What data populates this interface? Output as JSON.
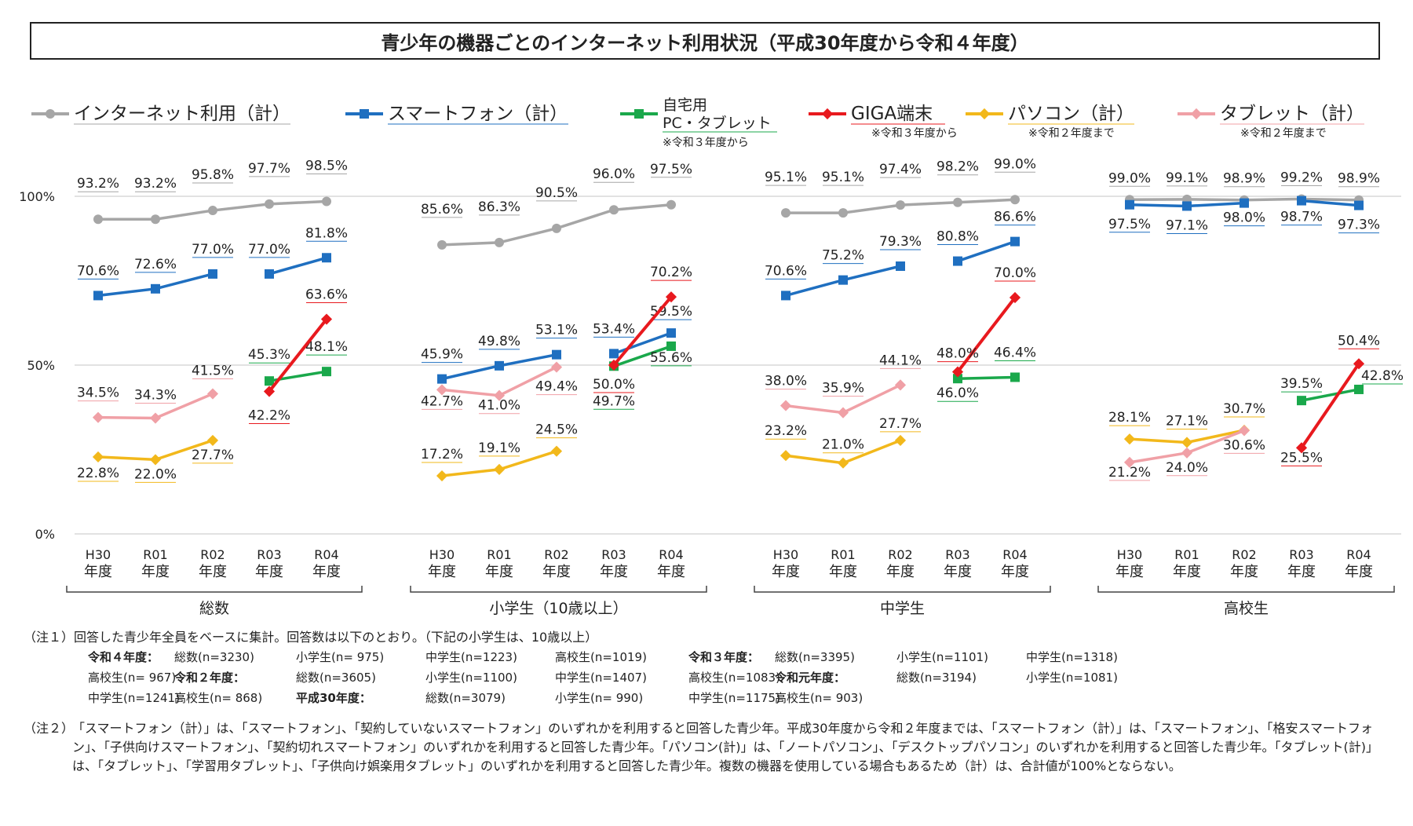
{
  "title": "青少年の機器ごとのインターネット利用状況（平成30年度から令和４年度）",
  "legend": [
    {
      "key": "internet",
      "label": "インターネット利用（計）",
      "note": ""
    },
    {
      "key": "smartphone",
      "label": "スマートフォン（計）",
      "note": ""
    },
    {
      "key": "home_pc",
      "label": "自宅用",
      "label2": "PC・タブレット",
      "note": "※令和３年度から"
    },
    {
      "key": "giga",
      "label": "GIGA端末",
      "note": "※令和３年度から"
    },
    {
      "key": "pc",
      "label": "パソコン（計）",
      "note": "※令和２年度まで"
    },
    {
      "key": "tablet",
      "label": "タブレット（計）",
      "note": "※令和２年度まで"
    }
  ],
  "y_ticks": [
    "100%",
    "50%",
    "0%"
  ],
  "x_ticks": [
    [
      "H30",
      "年度"
    ],
    [
      "R01",
      "年度"
    ],
    [
      "R02",
      "年度"
    ],
    [
      "R03",
      "年度"
    ],
    [
      "R04",
      "年度"
    ]
  ],
  "colors": {
    "internet": "#a6a6a6",
    "smartphone": "#1f6fc0",
    "home_pc": "#1aa84b",
    "giga": "#e8191e",
    "pc": "#f2b81b",
    "tablet": "#f0a0a6"
  },
  "chart_data": {
    "type": "line",
    "ylim": [
      0,
      100
    ],
    "categories": [
      "H30年度",
      "R01年度",
      "R02年度",
      "R03年度",
      "R04年度"
    ],
    "groups": [
      {
        "name": "総数",
        "series": [
          {
            "key": "internet",
            "values": [
              93.2,
              93.2,
              95.8,
              97.7,
              98.5
            ],
            "labels": [
              "93.2%",
              "93.2%",
              "95.8%",
              "97.7%",
              "98.5%"
            ]
          },
          {
            "key": "smartphone",
            "values": [
              70.6,
              72.6,
              77.0,
              77.0,
              81.8
            ],
            "labels": [
              "70.6%",
              "72.6%",
              "77.0%",
              "77.0%",
              "81.8%"
            ]
          },
          {
            "key": "home_pc",
            "values": [
              null,
              null,
              null,
              45.3,
              48.1
            ],
            "labels": [
              "",
              "",
              "",
              "45.3%",
              "48.1%"
            ]
          },
          {
            "key": "giga",
            "values": [
              null,
              null,
              null,
              42.2,
              63.6
            ],
            "labels": [
              "",
              "",
              "",
              "42.2%",
              "63.6%"
            ]
          },
          {
            "key": "pc",
            "values": [
              22.8,
              22.0,
              27.7,
              null,
              null
            ],
            "labels": [
              "22.8%",
              "22.0%",
              "27.7%",
              "",
              ""
            ]
          },
          {
            "key": "tablet",
            "values": [
              34.5,
              34.3,
              41.5,
              null,
              null
            ],
            "labels": [
              "34.5%",
              "34.3%",
              "41.5%",
              "",
              ""
            ]
          }
        ]
      },
      {
        "name": "小学生（10歳以上）",
        "series": [
          {
            "key": "internet",
            "values": [
              85.6,
              86.3,
              90.5,
              96.0,
              97.5
            ],
            "labels": [
              "85.6%",
              "86.3%",
              "90.5%",
              "96.0%",
              "97.5%"
            ]
          },
          {
            "key": "smartphone",
            "values": [
              45.9,
              49.8,
              53.1,
              53.4,
              59.5
            ],
            "labels": [
              "45.9%",
              "49.8%",
              "53.1%",
              "53.4%",
              "59.5%"
            ]
          },
          {
            "key": "home_pc",
            "values": [
              null,
              null,
              null,
              49.7,
              55.6
            ],
            "labels": [
              "",
              "",
              "",
              "49.7%",
              "55.6%"
            ]
          },
          {
            "key": "giga",
            "values": [
              null,
              null,
              null,
              50.0,
              70.2
            ],
            "labels": [
              "",
              "",
              "",
              "50.0%",
              "70.2%"
            ]
          },
          {
            "key": "pc",
            "values": [
              17.2,
              19.1,
              24.5,
              null,
              null
            ],
            "labels": [
              "17.2%",
              "19.1%",
              "24.5%",
              "",
              ""
            ]
          },
          {
            "key": "tablet",
            "values": [
              42.7,
              41.0,
              49.4,
              null,
              null
            ],
            "labels": [
              "42.7%",
              "41.0%",
              "49.4%",
              "",
              ""
            ]
          }
        ]
      },
      {
        "name": "中学生",
        "series": [
          {
            "key": "internet",
            "values": [
              95.1,
              95.1,
              97.4,
              98.2,
              99.0
            ],
            "labels": [
              "95.1%",
              "95.1%",
              "97.4%",
              "98.2%",
              "99.0%"
            ]
          },
          {
            "key": "smartphone",
            "values": [
              70.6,
              75.2,
              79.3,
              80.8,
              86.6
            ],
            "labels": [
              "70.6%",
              "75.2%",
              "79.3%",
              "80.8%",
              "86.6%"
            ]
          },
          {
            "key": "home_pc",
            "values": [
              null,
              null,
              null,
              46.0,
              46.4
            ],
            "labels": [
              "",
              "",
              "",
              "46.0%",
              "46.4%"
            ]
          },
          {
            "key": "giga",
            "values": [
              null,
              null,
              null,
              48.0,
              70.0
            ],
            "labels": [
              "",
              "",
              "",
              "48.0%",
              "70.0%"
            ]
          },
          {
            "key": "pc",
            "values": [
              23.2,
              21.0,
              27.7,
              null,
              null
            ],
            "labels": [
              "23.2%",
              "21.0%",
              "27.7%",
              "",
              ""
            ]
          },
          {
            "key": "tablet",
            "values": [
              38.0,
              35.9,
              44.1,
              null,
              null
            ],
            "labels": [
              "38.0%",
              "35.9%",
              "44.1%",
              "",
              ""
            ]
          }
        ]
      },
      {
        "name": "高校生",
        "series": [
          {
            "key": "internet",
            "values": [
              99.0,
              99.1,
              98.9,
              99.2,
              98.9
            ],
            "labels": [
              "99.0%",
              "99.1%",
              "98.9%",
              "99.2%",
              "98.9%"
            ]
          },
          {
            "key": "smartphone",
            "values": [
              97.5,
              97.1,
              98.0,
              98.7,
              97.3
            ],
            "labels": [
              "97.5%",
              "97.1%",
              "98.0%",
              "98.7%",
              "97.3%"
            ]
          },
          {
            "key": "home_pc",
            "values": [
              null,
              null,
              null,
              39.5,
              42.8
            ],
            "labels": [
              "",
              "",
              "",
              "39.5%",
              "42.8%"
            ]
          },
          {
            "key": "giga",
            "values": [
              null,
              null,
              null,
              25.5,
              50.4
            ],
            "labels": [
              "",
              "",
              "",
              "25.5%",
              "50.4%"
            ]
          },
          {
            "key": "pc",
            "values": [
              28.1,
              27.1,
              30.7,
              null,
              null
            ],
            "labels": [
              "28.1%",
              "27.1%",
              "30.7%",
              "",
              ""
            ]
          },
          {
            "key": "tablet",
            "values": [
              21.2,
              24.0,
              30.6,
              null,
              null
            ],
            "labels": [
              "21.2%",
              "24.0%",
              "30.6%",
              "",
              ""
            ]
          }
        ]
      }
    ]
  },
  "notes": {
    "note1": "（注１）回答した青少年全員をベースに集計。回答数は以下のとおり。（下記の小学生は、10歳以上）",
    "counts": [
      [
        "令和４年度：",
        "総数(n=3230)",
        "小学生(n= 975)",
        "中学生(n=1223)",
        "高校生(n=1019)",
        "令和３年度：",
        "総数(n=3395)",
        "小学生(n=1101)",
        "中学生(n=1318)",
        "高校生(n= 967)"
      ],
      [
        "令和２年度：",
        "総数(n=3605)",
        "小学生(n=1100)",
        "中学生(n=1407)",
        "高校生(n=1083)",
        "令和元年度：",
        "総数(n=3194)",
        "小学生(n=1081)",
        "中学生(n=1241)",
        "高校生(n= 868)"
      ],
      [
        "平成30年度：",
        "総数(n=3079)",
        "小学生(n= 990)",
        "中学生(n=1175)",
        "高校生(n= 903)",
        "",
        "",
        "",
        "",
        ""
      ]
    ],
    "note2_label": "（注２）",
    "note2": "「スマートフォン（計）」は、「スマートフォン」、「契約していないスマートフォン」のいずれかを利用すると回答した青少年。平成30年度から令和２年度までは、「スマートフォン（計）」は、「スマートフォン」、「格安スマートフォン」、「子供向けスマートフォン」、「契約切れスマートフォン」のいずれかを利用すると回答した青少年。「パソコン(計)」は、「ノートパソコン」、「デスクトップパソコン」のいずれかを利用すると回答した青少年。「タブレット(計)」は、「タブレット」、「学習用タブレット」、「子供向け娯楽用タブレット」のいずれかを利用すると回答した青少年。複数の機器を使用している場合もあるため（計）は、合計値が100%とならない。"
  }
}
